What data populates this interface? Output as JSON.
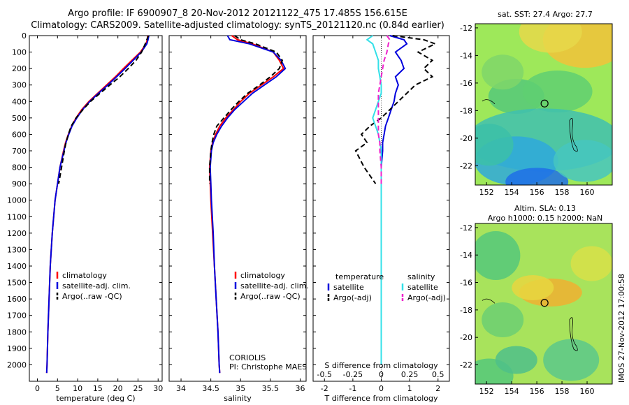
{
  "header": {
    "line1": "Argo profile: IF 6900907_8 20-Nov-2012 20121122_475 17.485S 156.615E",
    "line2": "Climatology: CARS2009. Satellite-adjusted climatology: synTS_20121120.nc (0.84d earlier)"
  },
  "maps": {
    "sst_title": "sat. SST: 27.4 Argo: 27.7",
    "sla_title1": "Altim. SLA: 0.13",
    "sla_title2": "Argo h1000: 0.15 h2000: NaN",
    "stamp": "IMOS 27-Nov-2012 17:00:58",
    "xticks": [
      "152",
      "154",
      "156",
      "158",
      "160"
    ],
    "yticks": [
      "-12",
      "-14",
      "-16",
      "-18",
      "-20",
      "-22"
    ],
    "argo_lon": 156.615,
    "argo_lat": -17.485
  },
  "chart_data": [
    {
      "type": "line",
      "xlabel": "temperature (deg C)",
      "xticks": [
        "0",
        "5",
        "10",
        "15",
        "20",
        "25",
        "30"
      ],
      "xlim": [
        -2,
        31
      ],
      "ylim": [
        2100,
        0
      ],
      "yticks": [
        "0",
        "100",
        "200",
        "300",
        "400",
        "500",
        "600",
        "700",
        "800",
        "900",
        "1000",
        "1100",
        "1200",
        "1300",
        "1400",
        "1500",
        "1600",
        "1700",
        "1800",
        "1900",
        "2000"
      ],
      "legend": [
        "climatology",
        "satellite-adj. clim.",
        "Argo(..raw -QC)"
      ],
      "depth": [
        0,
        25,
        50,
        100,
        150,
        200,
        250,
        300,
        350,
        400,
        450,
        500,
        550,
        600,
        650,
        700,
        800,
        900,
        1000,
        1200,
        1400,
        1600,
        1800,
        2000,
        2050
      ],
      "series": [
        {
          "name": "climatology",
          "color": "#ff0000",
          "values": [
            27.4,
            27.3,
            27.0,
            25.6,
            23.5,
            21.4,
            19.4,
            17.2,
            15.0,
            12.8,
            11.0,
            9.6,
            8.5,
            7.7,
            7.0,
            6.5,
            5.6,
            5.0,
            4.4,
            3.7,
            3.2,
            2.9,
            2.6,
            2.4,
            2.3
          ]
        },
        {
          "name": "satellite-adj. clim.",
          "color": "#0000dd",
          "values": [
            27.7,
            27.5,
            27.2,
            25.8,
            23.8,
            21.8,
            19.7,
            17.5,
            15.2,
            13.0,
            11.2,
            9.8,
            8.6,
            7.8,
            7.1,
            6.6,
            5.6,
            5.0,
            4.4,
            3.7,
            3.2,
            2.9,
            2.6,
            2.4,
            2.3
          ]
        },
        {
          "name": "Argo(..raw -QC)",
          "color": "#000000",
          "values": [
            27.6,
            27.2,
            26.8,
            25.9,
            24.5,
            22.6,
            20.5,
            18.0,
            15.6,
            13.2,
            11.3,
            9.6,
            8.4,
            7.7,
            7.1,
            6.7,
            6.0,
            5.3,
            null,
            null,
            null,
            null,
            null,
            null,
            null
          ]
        }
      ]
    },
    {
      "type": "line",
      "xlabel": "salinity",
      "xticks": [
        "34",
        "34.5",
        "35",
        "35.5",
        "36"
      ],
      "xlim": [
        33.8,
        36.1
      ],
      "ylim": [
        2100,
        0
      ],
      "legend": [
        "climatology",
        "satellite-adj. clim.",
        "Argo(..raw -QC)"
      ],
      "annotation": [
        "CORIOLIS",
        "PI: Christophe MAES"
      ],
      "depth": [
        0,
        25,
        50,
        100,
        150,
        200,
        250,
        300,
        350,
        400,
        450,
        500,
        550,
        600,
        650,
        700,
        800,
        900,
        1000,
        1200,
        1400,
        1600,
        1800,
        2000,
        2050
      ],
      "series": [
        {
          "name": "climatology",
          "color": "#ff0000",
          "values": [
            34.85,
            34.95,
            35.2,
            35.55,
            35.65,
            35.72,
            35.55,
            35.35,
            35.15,
            35.0,
            34.88,
            34.75,
            34.65,
            34.58,
            34.53,
            34.5,
            34.48,
            34.49,
            34.5,
            34.53,
            34.56,
            34.59,
            34.62,
            34.64,
            34.65
          ]
        },
        {
          "name": "satellite-adj. clim.",
          "color": "#0000dd",
          "values": [
            34.78,
            34.82,
            35.15,
            35.55,
            35.68,
            35.75,
            35.6,
            35.4,
            35.2,
            35.05,
            34.9,
            34.78,
            34.68,
            34.6,
            34.54,
            34.51,
            34.49,
            34.5,
            34.51,
            34.54,
            34.56,
            34.59,
            34.62,
            34.64,
            34.65
          ]
        },
        {
          "name": "Argo(..raw -QC)",
          "color": "#000000",
          "values": [
            34.9,
            35.0,
            35.25,
            35.6,
            35.7,
            35.65,
            35.5,
            35.32,
            35.12,
            34.97,
            34.84,
            34.72,
            34.6,
            34.55,
            34.52,
            34.5,
            34.48,
            34.48,
            null,
            null,
            null,
            null,
            null,
            null,
            null
          ]
        }
      ]
    },
    {
      "type": "line",
      "xlabel": "T difference from climatology",
      "xlabel_top": "S difference from climatology",
      "xticks": [
        "-2",
        "-1",
        "0",
        "1",
        "2"
      ],
      "xticks_top": [
        "-0.5",
        "-0.25",
        "0",
        "0.25",
        "0.5"
      ],
      "xlim": [
        -2.4,
        2.4
      ],
      "ylim": [
        2100,
        0
      ],
      "legend_headers": [
        "temperature",
        "salinity"
      ],
      "legend": [
        "satellite",
        "Argo(-adj)",
        "satellite",
        "Argo(-adj)"
      ],
      "depth": [
        0,
        25,
        50,
        100,
        150,
        200,
        250,
        300,
        350,
        400,
        450,
        500,
        550,
        600,
        650,
        700,
        800,
        900,
        1000,
        1200,
        1400,
        1600,
        1800,
        2000
      ],
      "series": [
        {
          "name": "satellite",
          "color": "#0000dd",
          "values": [
            0.3,
            0.8,
            0.9,
            0.5,
            0.7,
            0.8,
            0.5,
            0.6,
            0.5,
            0.45,
            0.35,
            0.25,
            0.15,
            0.1,
            0.05,
            0.05,
            0.0,
            0.0,
            0.0,
            0.0,
            0.0,
            0.0,
            0.0,
            0.0
          ]
        },
        {
          "name": "Argo(-adj)",
          "color": "#000000",
          "values": [
            0.4,
            1.5,
            1.9,
            1.3,
            1.8,
            1.5,
            1.8,
            1.2,
            0.9,
            0.6,
            0.3,
            0.0,
            -0.4,
            -0.7,
            -0.5,
            -0.9,
            -0.6,
            -0.2,
            null,
            null,
            null,
            null,
            null,
            null
          ]
        },
        {
          "name": "satellite",
          "color": "#33e0e8",
          "values": [
            -0.3,
            -0.5,
            -0.3,
            -0.2,
            -0.1,
            -0.1,
            -0.05,
            0.0,
            0.0,
            -0.1,
            -0.2,
            -0.3,
            -0.2,
            -0.1,
            -0.05,
            0.0,
            0.0,
            0.0,
            0.0,
            0.0,
            0.0,
            0.0,
            0.0,
            0.0
          ]
        },
        {
          "name": "Argo(-adj)",
          "color": "#ee22cc",
          "values": [
            0.2,
            0.3,
            0.25,
            0.2,
            0.1,
            0.05,
            0.0,
            -0.05,
            -0.1,
            -0.1,
            -0.1,
            -0.1,
            -0.1,
            -0.1,
            -0.05,
            -0.05,
            0.0,
            0.0,
            null,
            null,
            null,
            null,
            null,
            null
          ]
        }
      ]
    }
  ]
}
